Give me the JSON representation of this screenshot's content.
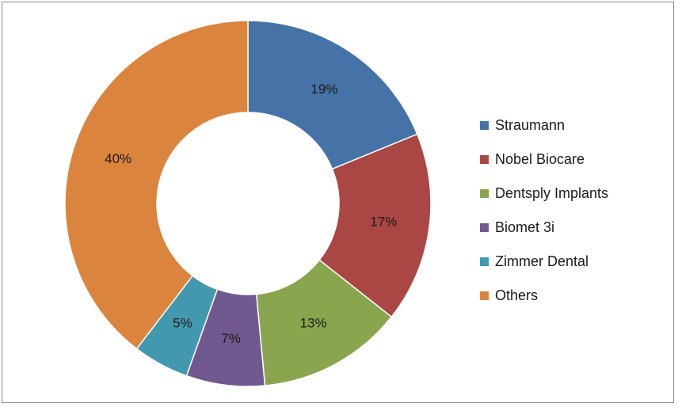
{
  "chart_data": {
    "type": "pie",
    "subtype": "donut",
    "categories": [
      "Straumann",
      "Nobel Biocare",
      "Dentsply Implants",
      "Biomet 3i",
      "Zimmer Dental",
      "Others"
    ],
    "values": [
      19,
      17,
      13,
      7,
      5,
      40
    ],
    "labels": [
      "19%",
      "17%",
      "13%",
      "7%",
      "5%",
      "40%"
    ],
    "colors": [
      "#4572A7",
      "#AA4643",
      "#89A54E",
      "#71588F",
      "#4198AF",
      "#DB843D"
    ],
    "legend_position": "right"
  }
}
